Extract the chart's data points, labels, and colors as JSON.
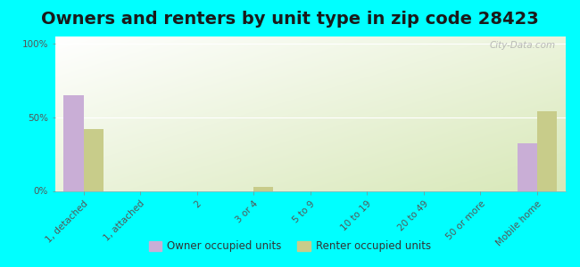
{
  "title": "Owners and renters by unit type in zip code 28423",
  "categories": [
    "1, detached",
    "1, attached",
    "2",
    "3 or 4",
    "5 to 9",
    "10 to 19",
    "20 to 49",
    "50 or more",
    "Mobile home"
  ],
  "owner_values": [
    65,
    0,
    0,
    0,
    0,
    0,
    0,
    0,
    32
  ],
  "renter_values": [
    42,
    0,
    0,
    3,
    0,
    0,
    0,
    0,
    54
  ],
  "owner_color": "#c9aed6",
  "renter_color": "#c8cc8a",
  "bg_outer": "#00ffff",
  "ylabel_ticks": [
    "0%",
    "50%",
    "100%"
  ],
  "ytick_vals": [
    0,
    50,
    100
  ],
  "ylim": [
    0,
    105
  ],
  "bar_width": 0.35,
  "title_fontsize": 14,
  "tick_fontsize": 7.5,
  "watermark": "City-Data.com",
  "grad_top_left": "#ffffff",
  "grad_bottom_right": "#d8e8b8"
}
